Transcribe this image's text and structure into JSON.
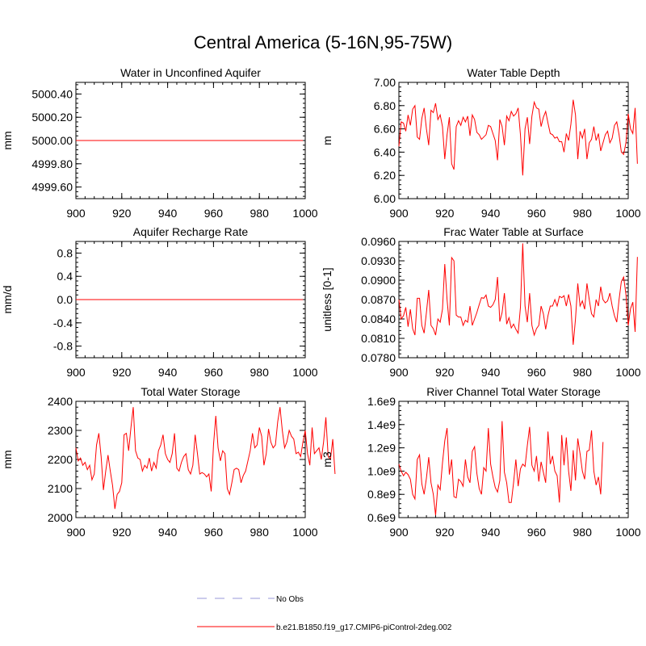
{
  "title": "Central America (5-16N,95-75W)",
  "colors": {
    "model": "#ff0000",
    "obs": "#9a9ad8",
    "axis": "#000000"
  },
  "legend": {
    "entries": [
      {
        "label": "No Obs",
        "style": "dashed",
        "color": "#9a9ad8"
      },
      {
        "label": "b.e21.B1850.f19_g17.CMIP6-piControl-2deg.002",
        "style": "solid",
        "color": "#ff0000"
      }
    ]
  },
  "chart_data": [
    {
      "type": "line",
      "title": "Water in Unconfined Aquifer",
      "xlabel": "",
      "ylabel": "mm",
      "xlim": [
        900,
        1000
      ],
      "ylim": [
        4999.5,
        5000.5
      ],
      "xticks": [
        900,
        920,
        940,
        960,
        980,
        1000
      ],
      "xtick_labels": [
        "900",
        "920",
        "940",
        "960",
        "980",
        "1000"
      ],
      "yticks": [
        4999.6,
        4999.8,
        5000.0,
        5000.2,
        5000.4
      ],
      "ytick_labels": [
        "4999.60",
        "4999.80",
        "5000.00",
        "5000.20",
        "5000.40"
      ],
      "x_start": 900,
      "series": [
        {
          "name": "b.e21.B1850.f19_g17.CMIP6-piControl-2deg.002",
          "constant": 5000.0,
          "x_end": 999
        }
      ]
    },
    {
      "type": "line",
      "title": "Water Table Depth",
      "xlabel": "",
      "ylabel": "m",
      "xlim": [
        900,
        1000
      ],
      "ylim": [
        6.0,
        7.0
      ],
      "xticks": [
        900,
        920,
        940,
        960,
        980,
        1000
      ],
      "xtick_labels": [
        "900",
        "920",
        "940",
        "960",
        "980",
        "1000"
      ],
      "yticks": [
        6.0,
        6.2,
        6.4,
        6.6,
        6.8,
        7.0
      ],
      "ytick_labels": [
        "6.00",
        "6.20",
        "6.40",
        "6.60",
        "6.80",
        "7.00"
      ],
      "x_start": 900,
      "series": [
        {
          "name": "b.e21.B1850.f19_g17.CMIP6-piControl-2deg.002",
          "values": [
            6.45,
            6.66,
            6.65,
            6.58,
            6.72,
            6.63,
            6.77,
            6.8,
            6.53,
            6.51,
            6.69,
            6.78,
            6.6,
            6.46,
            6.76,
            6.74,
            6.82,
            6.68,
            6.72,
            6.62,
            6.34,
            6.55,
            6.7,
            6.3,
            6.25,
            6.62,
            6.67,
            6.63,
            6.7,
            6.66,
            6.71,
            6.54,
            6.72,
            6.68,
            6.57,
            6.55,
            6.51,
            6.53,
            6.55,
            6.63,
            6.62,
            6.56,
            6.5,
            6.33,
            6.68,
            6.62,
            6.46,
            6.71,
            6.67,
            6.75,
            6.71,
            6.73,
            6.78,
            6.55,
            6.2,
            6.6,
            6.7,
            6.47,
            6.71,
            6.83,
            6.78,
            6.77,
            6.62,
            6.7,
            6.75,
            6.65,
            6.56,
            6.55,
            6.52,
            6.53,
            6.49,
            6.49,
            6.4,
            6.56,
            6.5,
            6.64,
            6.85,
            6.72,
            6.34,
            6.58,
            6.52,
            6.6,
            6.34,
            6.48,
            6.51,
            6.62,
            6.5,
            6.56,
            6.41,
            6.48,
            6.55,
            6.58,
            6.48,
            6.52,
            6.63,
            6.66,
            6.55,
            6.4,
            6.38,
            6.48,
            6.73,
            6.6,
            6.56,
            6.78,
            6.3
          ]
        }
      ]
    },
    {
      "type": "line",
      "title": "Aquifer Recharge Rate",
      "xlabel": "",
      "ylabel": "mm/d",
      "xlim": [
        900,
        1000
      ],
      "ylim": [
        -1.0,
        1.0
      ],
      "xticks": [
        900,
        920,
        940,
        960,
        980,
        1000
      ],
      "xtick_labels": [
        "900",
        "920",
        "940",
        "960",
        "980",
        "1000"
      ],
      "yticks": [
        -0.8,
        -0.4,
        0.0,
        0.4,
        0.8
      ],
      "ytick_labels": [
        "-0.8",
        "-0.4",
        "0.0",
        "0.4",
        "0.8"
      ],
      "x_start": 900,
      "series": [
        {
          "name": "b.e21.B1850.f19_g17.CMIP6-piControl-2deg.002",
          "constant": 0.0,
          "x_end": 999
        }
      ]
    },
    {
      "type": "line",
      "title": "Frac Water Table at Surface",
      "xlabel": "",
      "ylabel": "unitless [0-1]",
      "xlim": [
        900,
        1000
      ],
      "ylim": [
        0.078,
        0.096
      ],
      "xticks": [
        900,
        920,
        940,
        960,
        980,
        1000
      ],
      "xtick_labels": [
        "900",
        "920",
        "940",
        "960",
        "980",
        "1000"
      ],
      "yticks": [
        0.078,
        0.081,
        0.084,
        0.087,
        0.09,
        0.093,
        0.096
      ],
      "ytick_labels": [
        "0.0780",
        "0.0810",
        "0.0840",
        "0.0870",
        "0.0900",
        "0.0930",
        "0.0960"
      ],
      "x_start": 900,
      "series": [
        {
          "name": "b.e21.B1850.f19_g17.CMIP6-piControl-2deg.002",
          "values": [
            0.087,
            0.084,
            0.0845,
            0.0858,
            0.0828,
            0.0855,
            0.0825,
            0.0815,
            0.0872,
            0.0872,
            0.083,
            0.0818,
            0.085,
            0.0885,
            0.083,
            0.0825,
            0.0815,
            0.084,
            0.0835,
            0.0855,
            0.0925,
            0.087,
            0.083,
            0.0935,
            0.093,
            0.0846,
            0.0843,
            0.0843,
            0.083,
            0.0838,
            0.0835,
            0.086,
            0.083,
            0.084,
            0.085,
            0.0862,
            0.0873,
            0.0872,
            0.0877,
            0.086,
            0.0858,
            0.0862,
            0.087,
            0.0905,
            0.0836,
            0.085,
            0.088,
            0.0832,
            0.0842,
            0.0826,
            0.0832,
            0.0824,
            0.0818,
            0.0858,
            0.0957,
            0.086,
            0.0835,
            0.088,
            0.083,
            0.0815,
            0.0825,
            0.083,
            0.086,
            0.0848,
            0.0824,
            0.0845,
            0.086,
            0.086,
            0.087,
            0.086,
            0.0875,
            0.0873,
            0.0876,
            0.086,
            0.0878,
            0.086,
            0.08,
            0.084,
            0.0895,
            0.086,
            0.0868,
            0.0855,
            0.0895,
            0.087,
            0.0848,
            0.0843,
            0.087,
            0.086,
            0.089,
            0.087,
            0.0865,
            0.0868,
            0.088,
            0.086,
            0.0845,
            0.0835,
            0.087,
            0.0898,
            0.0905,
            0.0878,
            0.083,
            0.0856,
            0.0866,
            0.082,
            0.0936
          ]
        }
      ]
    },
    {
      "type": "line",
      "title": "Total Water Storage",
      "xlabel": "",
      "ylabel": "mm",
      "xlim": [
        900,
        1000
      ],
      "ylim": [
        2000,
        2400
      ],
      "xticks": [
        900,
        920,
        940,
        960,
        980,
        1000
      ],
      "xtick_labels": [
        "900",
        "920",
        "940",
        "960",
        "980",
        "1000"
      ],
      "yticks": [
        2000,
        2100,
        2200,
        2300,
        2400
      ],
      "ytick_labels": [
        "2000",
        "2100",
        "2200",
        "2300",
        "2400"
      ],
      "x_start": 900,
      "series": [
        {
          "name": "b.e21.B1850.f19_g17.CMIP6-piControl-2deg.002",
          "values": [
            2240,
            2195,
            2205,
            2180,
            2190,
            2165,
            2180,
            2130,
            2150,
            2250,
            2290,
            2210,
            2095,
            2160,
            2215,
            2160,
            2110,
            2030,
            2080,
            2090,
            2120,
            2285,
            2290,
            2230,
            2310,
            2380,
            2230,
            2205,
            2200,
            2160,
            2180,
            2170,
            2205,
            2160,
            2190,
            2170,
            2230,
            2250,
            2285,
            2220,
            2200,
            2190,
            2220,
            2290,
            2170,
            2160,
            2190,
            2210,
            2220,
            2165,
            2150,
            2180,
            2285,
            2220,
            2150,
            2155,
            2150,
            2140,
            2150,
            2090,
            2250,
            2350,
            2240,
            2195,
            2230,
            2220,
            2100,
            2080,
            2120,
            2165,
            2170,
            2165,
            2120,
            2145,
            2160,
            2195,
            2230,
            2290,
            2240,
            2250,
            2310,
            2280,
            2180,
            2220,
            2305,
            2260,
            2240,
            2250,
            2330,
            2380,
            2300,
            2240,
            2260,
            2300,
            2280,
            2270,
            2220,
            2225,
            2210,
            2260,
            2300,
            2220,
            2180,
            2310,
            2220,
            2230,
            2240,
            2200,
            2260,
            2345,
            2210,
            2200,
            2270,
            2150
          ]
        }
      ]
    },
    {
      "type": "line",
      "title": "River Channel Total Water Storage",
      "xlabel": "",
      "ylabel": "m3",
      "xlim": [
        900,
        1000
      ],
      "ylim": [
        600000000.0,
        1600000000.0
      ],
      "xticks": [
        900,
        920,
        940,
        960,
        980,
        1000
      ],
      "xtick_labels": [
        "900",
        "920",
        "940",
        "960",
        "980",
        "1000"
      ],
      "yticks": [
        600000000.0,
        800000000.0,
        1000000000.0,
        1200000000.0,
        1400000000.0,
        1600000000.0
      ],
      "ytick_labels": [
        "0.6e9",
        "0.8e9",
        "1.0e9",
        "1.2e9",
        "1.4e9",
        "1.6e9"
      ],
      "x_start": 900,
      "series": [
        {
          "name": "b.e21.B1850.f19_g17.CMIP6-piControl-2deg.002",
          "values": [
            1060000000.0,
            1000000000.0,
            960000000.0,
            990000000.0,
            970000000.0,
            930000000.0,
            800000000.0,
            760000000.0,
            1100000000.0,
            1140000000.0,
            890000000.0,
            800000000.0,
            940000000.0,
            1120000000.0,
            900000000.0,
            800000000.0,
            620000000.0,
            880000000.0,
            840000000.0,
            1070000000.0,
            1260000000.0,
            1370000000.0,
            970000000.0,
            1100000000.0,
            780000000.0,
            770000000.0,
            930000000.0,
            910000000.0,
            870000000.0,
            1100000000.0,
            950000000.0,
            900000000.0,
            1170000000.0,
            1210000000.0,
            980000000.0,
            850000000.0,
            800000000.0,
            1030000000.0,
            1000000000.0,
            1370000000.0,
            1060000000.0,
            950000000.0,
            860000000.0,
            820000000.0,
            920000000.0,
            1430000000.0,
            990000000.0,
            900000000.0,
            730000000.0,
            730000000.0,
            900000000.0,
            1100000000.0,
            870000000.0,
            1020000000.0,
            1060000000.0,
            1040000000.0,
            1220000000.0,
            1380000000.0,
            1050000000.0,
            1000000000.0,
            1130000000.0,
            910000000.0,
            1080000000.0,
            990000000.0,
            900000000.0,
            1340000000.0,
            1060000000.0,
            1130000000.0,
            1000000000.0,
            960000000.0,
            730000000.0,
            1310000000.0,
            1050000000.0,
            1290000000.0,
            1000000000.0,
            830000000.0,
            1180000000.0,
            920000000.0,
            1280000000.0,
            1150000000.0,
            1000000000.0,
            930000000.0,
            1170000000.0,
            1180000000.0,
            1350000000.0,
            1000000000.0,
            880000000.0,
            950000000.0,
            800000000.0,
            1250000000.0
          ]
        }
      ]
    }
  ]
}
